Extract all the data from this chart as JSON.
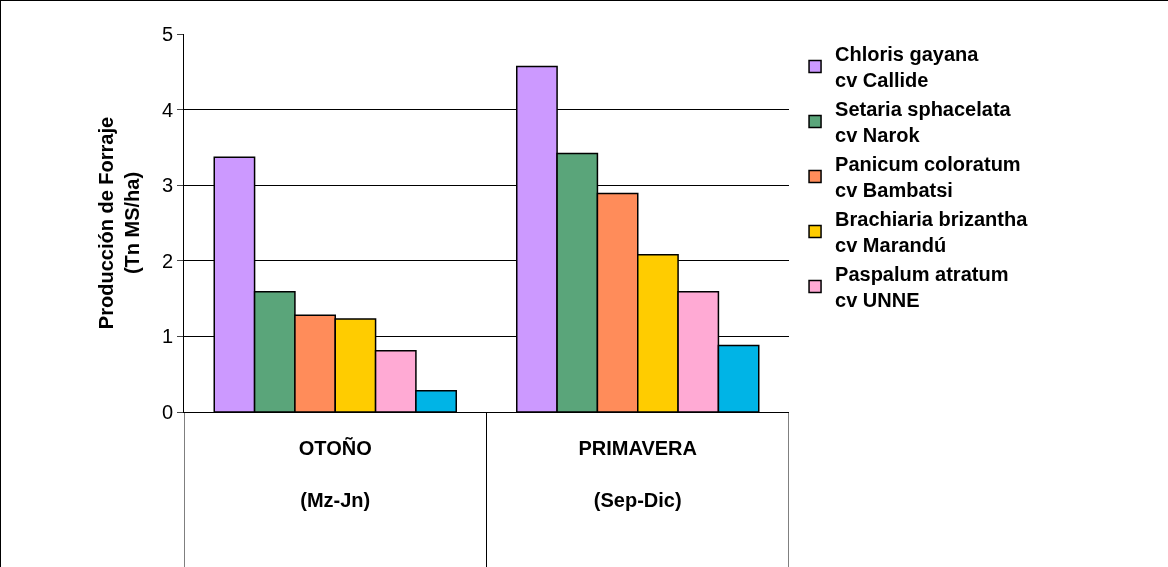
{
  "chart_data": {
    "type": "bar",
    "ylabel": "Producción de Forraje\n(Tn MS/ha)",
    "categories": [
      "OTOÑO\n\n(Mz-Jn)",
      "PRIMAVERA\n\n(Sep-Dic)"
    ],
    "series": [
      {
        "name": "Chloris gayana\ncv Callide",
        "color": "#cc99ff",
        "values": [
          3.37,
          4.57
        ]
      },
      {
        "name": "Setaria sphacelata\ncv Narok",
        "color": "#5aa57a",
        "values": [
          1.59,
          3.42
        ]
      },
      {
        "name": "Panicum coloratum\ncv Bambatsi",
        "color": "#ff8c5a",
        "values": [
          1.28,
          2.89
        ]
      },
      {
        "name": "Brachiaria brizantha\ncv Marandú",
        "color": "#ffcc00",
        "values": [
          1.23,
          2.08
        ]
      },
      {
        "name": "Paspalum atratum\ncv UNNE",
        "color": "#ffaad4",
        "values": [
          0.81,
          1.59
        ]
      },
      {
        "color": "#00b4e6",
        "values": [
          0.28,
          0.88
        ]
      }
    ],
    "ylim": [
      0,
      5
    ],
    "yticks": [
      0,
      1,
      2,
      3,
      4,
      5
    ],
    "grid": "y",
    "legend": "right"
  }
}
